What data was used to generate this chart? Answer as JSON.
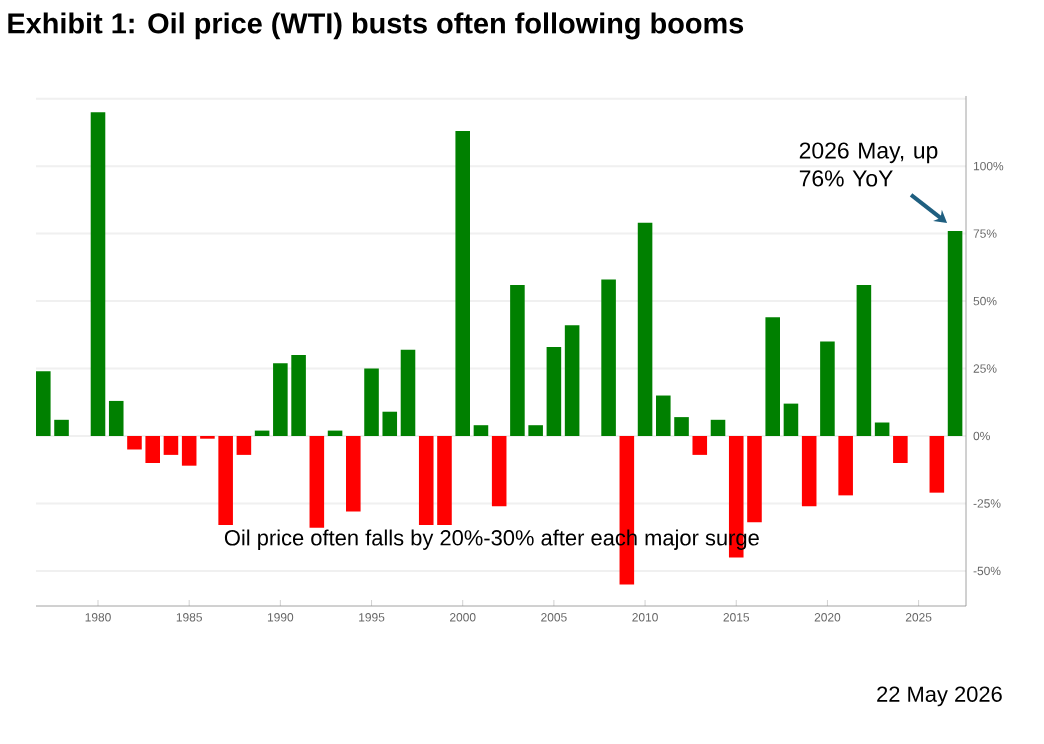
{
  "chart_data": {
    "type": "bar",
    "title": "Exhibit 1: Oil price (WTI) busts often following booms",
    "x": [
      1977,
      1978,
      1980,
      1981,
      1982,
      1983,
      1984,
      1985,
      1986,
      1987,
      1988,
      1989,
      1990,
      1991,
      1992,
      1993,
      1994,
      1995,
      1996,
      1997,
      1998,
      1999,
      2000,
      2001,
      2002,
      2003,
      2004,
      2005,
      2006,
      2008,
      2009,
      2010,
      2011,
      2012,
      2013,
      2014,
      2015,
      2016,
      2017,
      2018,
      2019,
      2020,
      2021,
      2022,
      2023,
      2024,
      2026,
      2027
    ],
    "values": [
      24,
      6,
      120,
      13,
      -5,
      -10,
      -7,
      -11,
      -1,
      -33,
      -7,
      2,
      27,
      30,
      -34,
      2,
      -28,
      25,
      9,
      32,
      -33,
      -33,
      113,
      4,
      -26,
      56,
      4,
      33,
      41,
      58,
      -55,
      79,
      15,
      7,
      -7,
      6,
      -45,
      -32,
      44,
      12,
      -26,
      35,
      -22,
      56,
      5,
      -10,
      -21,
      76
    ],
    "colors": [
      "#008000",
      "#008000",
      "#008000",
      "#008000",
      "#ff0000",
      "#ff0000",
      "#ff0000",
      "#ff0000",
      "#ff0000",
      "#ff0000",
      "#ff0000",
      "#008000",
      "#008000",
      "#008000",
      "#ff0000",
      "#008000",
      "#ff0000",
      "#008000",
      "#008000",
      "#008000",
      "#ff0000",
      "#ff0000",
      "#008000",
      "#008000",
      "#ff0000",
      "#008000",
      "#008000",
      "#008000",
      "#008000",
      "#008000",
      "#ff0000",
      "#008000",
      "#008000",
      "#008000",
      "#ff0000",
      "#008000",
      "#ff0000",
      "#ff0000",
      "#008000",
      "#008000",
      "#ff0000",
      "#008000",
      "#ff0000",
      "#008000",
      "#008000",
      "#ff0000",
      "#ff0000",
      "#008000"
    ],
    "xlim": [
      1976.6,
      2027.6
    ],
    "xticks": [
      1980,
      1985,
      1990,
      1995,
      2000,
      2005,
      2010,
      2015,
      2020,
      2025
    ],
    "ylim": [
      -63,
      126
    ],
    "yticks": [
      {
        "value": -50,
        "label": "-50%"
      },
      {
        "value": -25,
        "label": "-25%"
      },
      {
        "value": 0,
        "label": "0%"
      },
      {
        "value": 25,
        "label": "25%"
      },
      {
        "value": 50,
        "label": "50%"
      },
      {
        "value": 75,
        "label": "75%"
      },
      {
        "value": 100,
        "label": "100%"
      },
      {
        "value": 125,
        "label": null
      }
    ],
    "grid": "y",
    "annotations": [
      {
        "text": "2026 May, up 76% YoY",
        "x": 2027,
        "y": 76
      },
      "Oil price often falls by 20%-30% after each major surge",
      "22 May 2026"
    ]
  }
}
